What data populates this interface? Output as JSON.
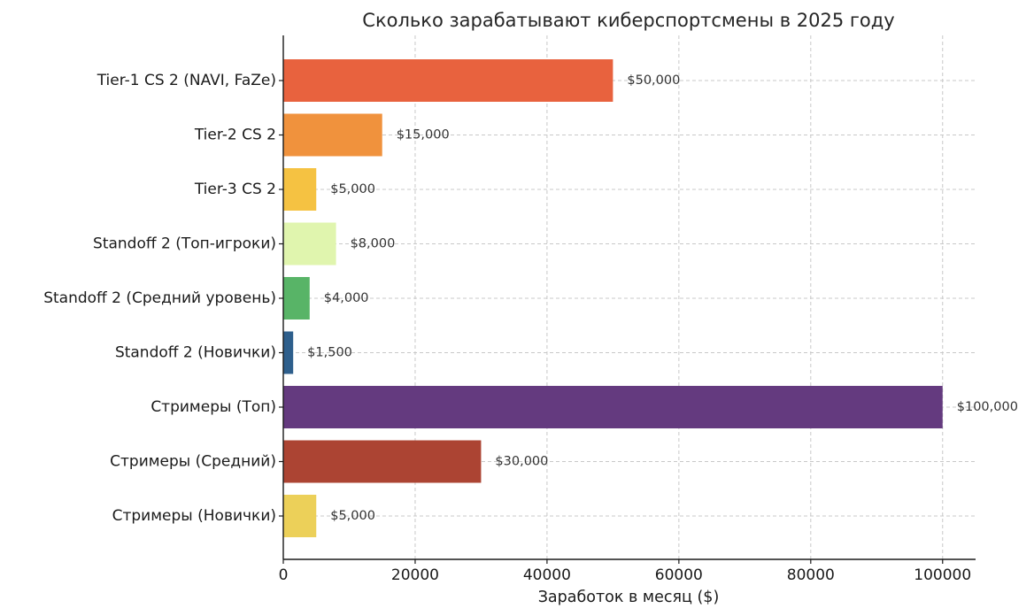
{
  "chart_data": {
    "type": "bar",
    "orientation": "horizontal",
    "title": "Сколько зарабатывают киберспортсмены в 2025 году",
    "xlabel": "Заработок в месяц ($)",
    "ylabel": "",
    "xlim": [
      0,
      105000
    ],
    "xticks": [
      0,
      20000,
      40000,
      60000,
      80000,
      100000
    ],
    "xtick_labels": [
      "0",
      "20000",
      "40000",
      "60000",
      "80000",
      "100000"
    ],
    "grid": true,
    "categories": [
      "Tier-1 CS 2 (NAVI, FaZe)",
      "Tier-2 CS 2",
      "Tier-3 CS 2",
      "Standoff 2 (Топ-игроки)",
      "Standoff 2 (Средний уровень)",
      "Standoff 2 (Новички)",
      "Стримеры (Топ)",
      "Стримеры (Средний)",
      "Стримеры (Новички)"
    ],
    "values": [
      50000,
      15000,
      5000,
      8000,
      4000,
      1500,
      100000,
      30000,
      5000
    ],
    "value_labels": [
      "$50,000",
      "$15,000",
      "$5,000",
      "$8,000",
      "$4,000",
      "$1,500",
      "$100,000",
      "$30,000",
      "$5,000"
    ],
    "colors": [
      "#e8623e",
      "#f0923d",
      "#f5c242",
      "#e0f5ae",
      "#58b467",
      "#2e5f8c",
      "#643a7f",
      "#ac4433",
      "#ecd059"
    ]
  }
}
